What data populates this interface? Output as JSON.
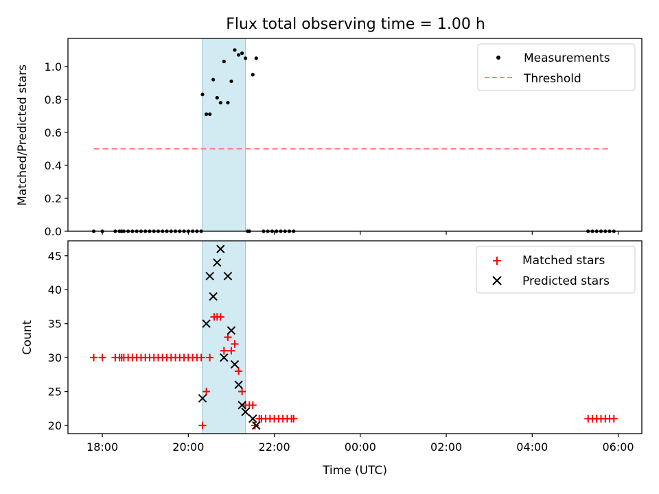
{
  "chart_data": {
    "type": "scatter",
    "title": "Flux total observing time = 1.00 h",
    "xlabel": "Time (UTC)",
    "x_ticks": [
      "18:00",
      "20:00",
      "22:00",
      "00:00",
      "02:00",
      "04:00",
      "06:00"
    ],
    "x_unit": "hours since 18:00 UTC",
    "xlim": [
      -0.8,
      12.55
    ],
    "shaded_span": [
      2.33,
      3.33
    ],
    "colors": {
      "shade": "#add8e6",
      "threshold": "#ff7f7f",
      "matched": "#ff0000",
      "predicted": "#000000",
      "measure": "#000000"
    },
    "top": {
      "ylabel": "Matched/Predicted stars",
      "ylim": [
        0,
        1.17
      ],
      "y_ticks": [
        "0.0",
        "0.2",
        "0.4",
        "0.6",
        "0.8",
        "1.0"
      ],
      "legend": [
        "Measurements",
        "Threshold"
      ],
      "threshold": {
        "value": 0.5,
        "x_range": [
          -0.2,
          11.8
        ]
      },
      "measurements": {
        "x": [
          -0.2,
          0,
          0.3,
          0.4,
          0.45,
          0.5,
          0.6,
          0.7,
          0.8,
          0.9,
          1.0,
          1.1,
          1.2,
          1.3,
          1.4,
          1.5,
          1.6,
          1.7,
          1.8,
          1.9,
          2.0,
          2.1,
          2.2,
          2.3,
          2.33,
          2.42,
          2.5,
          2.58,
          2.67,
          2.75,
          2.83,
          2.92,
          3.0,
          3.08,
          3.17,
          3.25,
          3.33,
          3.38,
          3.42,
          3.5,
          3.58,
          3.75,
          3.85,
          3.95,
          4.05,
          4.15,
          4.25,
          4.35,
          4.45,
          11.3,
          11.4,
          11.5,
          11.6,
          11.7,
          11.8,
          11.9
        ],
        "y": [
          0,
          0,
          0,
          0,
          0,
          0,
          0,
          0,
          0,
          0,
          0,
          0,
          0,
          0,
          0,
          0,
          0,
          0,
          0,
          0,
          0,
          0,
          0,
          0,
          0.83,
          0.71,
          0.71,
          0.92,
          0.81,
          0.78,
          1.03,
          0.78,
          0.91,
          1.1,
          1.07,
          1.08,
          1.05,
          0,
          0,
          0.95,
          1.05,
          0,
          0,
          0,
          0,
          0,
          0,
          0,
          0,
          0,
          0,
          0,
          0,
          0,
          0,
          0
        ]
      }
    },
    "bottom": {
      "ylabel": "Count",
      "ylim": [
        18.8,
        47.2
      ],
      "y_ticks": [
        "20",
        "25",
        "30",
        "35",
        "40",
        "45"
      ],
      "legend": [
        "Matched stars",
        "Predicted stars"
      ],
      "matched": {
        "x": [
          -0.2,
          0,
          0.3,
          0.4,
          0.45,
          0.5,
          0.6,
          0.7,
          0.8,
          0.9,
          1.0,
          1.1,
          1.2,
          1.3,
          1.4,
          1.5,
          1.6,
          1.7,
          1.8,
          1.9,
          2.0,
          2.1,
          2.2,
          2.3,
          2.33,
          2.42,
          2.5,
          2.6,
          2.67,
          2.75,
          2.83,
          2.92,
          3.0,
          3.08,
          3.17,
          3.25,
          3.33,
          3.42,
          3.5,
          3.55,
          3.65,
          3.7,
          3.8,
          3.9,
          4.0,
          4.1,
          4.2,
          4.3,
          4.4,
          4.45,
          11.3,
          11.4,
          11.5,
          11.6,
          11.7,
          11.8,
          11.9
        ],
        "y": [
          30,
          30,
          30,
          30,
          30,
          30,
          30,
          30,
          30,
          30,
          30,
          30,
          30,
          30,
          30,
          30,
          30,
          30,
          30,
          30,
          30,
          30,
          30,
          30,
          20,
          25,
          30,
          36,
          36,
          36,
          31,
          33,
          31,
          32,
          28,
          25,
          23,
          23,
          23,
          20,
          21,
          21,
          21,
          21,
          21,
          21,
          21,
          21,
          21,
          21,
          21,
          21,
          21,
          21,
          21,
          21,
          21
        ]
      },
      "predicted": {
        "x": [
          2.33,
          2.42,
          2.5,
          2.58,
          2.67,
          2.75,
          2.83,
          2.92,
          3.0,
          3.08,
          3.17,
          3.25,
          3.33,
          3.5,
          3.58
        ],
        "y": [
          24,
          35,
          42,
          39,
          44,
          46,
          30,
          42,
          34,
          29,
          26,
          23,
          22,
          21,
          20
        ]
      }
    }
  }
}
